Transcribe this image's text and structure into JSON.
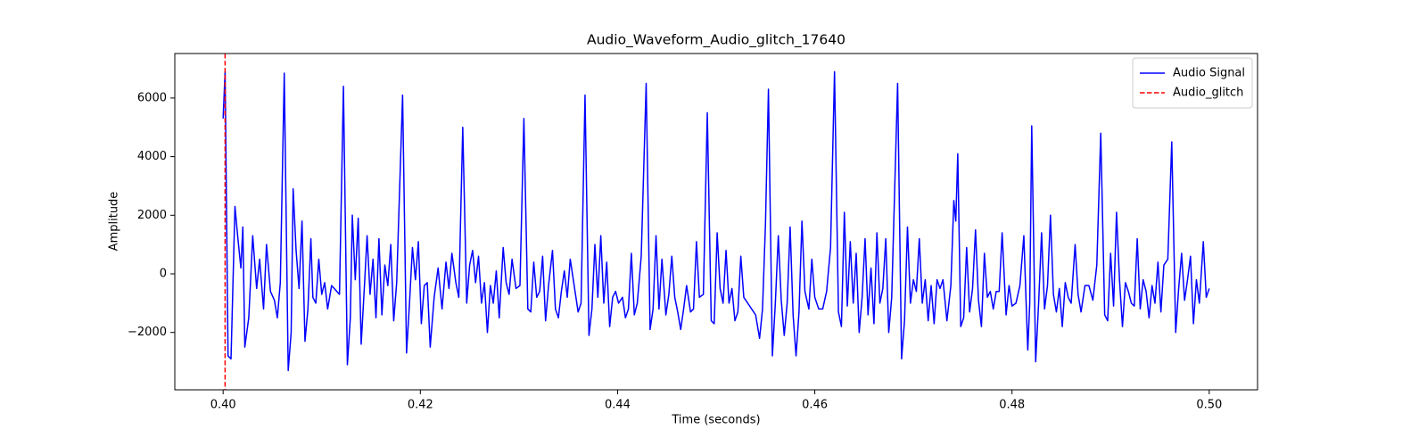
{
  "chart_data": {
    "type": "line",
    "title": "Audio_Waveform_Audio_glitch_17640",
    "xlabel": "Time (seconds)",
    "ylabel": "Amplitude",
    "x": [
      0.4,
      0.4002,
      0.4005,
      0.4008,
      0.4012,
      0.4015,
      0.4018,
      0.402,
      0.4022,
      0.4026,
      0.403,
      0.4034,
      0.4037,
      0.4041,
      0.4044,
      0.4048,
      0.4052,
      0.4055,
      0.4058,
      0.4062,
      0.4066,
      0.4069,
      0.4071,
      0.4074,
      0.4077,
      0.408,
      0.4083,
      0.4086,
      0.4089,
      0.4091,
      0.4094,
      0.4097,
      0.41,
      0.4103,
      0.4106,
      0.411,
      0.4118,
      0.4122,
      0.4126,
      0.4129,
      0.4131,
      0.4134,
      0.4137,
      0.414,
      0.4143,
      0.4146,
      0.4149,
      0.4152,
      0.4155,
      0.4158,
      0.4161,
      0.4164,
      0.4167,
      0.417,
      0.4173,
      0.4176,
      0.4182,
      0.4186,
      0.4189,
      0.4192,
      0.4195,
      0.4198,
      0.4201,
      0.4204,
      0.4207,
      0.421,
      0.4214,
      0.4218,
      0.4222,
      0.4226,
      0.4229,
      0.4232,
      0.4236,
      0.4239,
      0.4243,
      0.4247,
      0.425,
      0.4253,
      0.4256,
      0.4259,
      0.4262,
      0.4265,
      0.4268,
      0.4271,
      0.4274,
      0.4277,
      0.428,
      0.4284,
      0.4287,
      0.429,
      0.4293,
      0.4297,
      0.4301,
      0.4305,
      0.4309,
      0.4312,
      0.4315,
      0.4318,
      0.4321,
      0.4324,
      0.4327,
      0.433,
      0.4334,
      0.4337,
      0.434,
      0.4343,
      0.4346,
      0.4349,
      0.4352,
      0.4356,
      0.436,
      0.4363,
      0.4367,
      0.4371,
      0.4374,
      0.4377,
      0.438,
      0.4383,
      0.4386,
      0.4389,
      0.4392,
      0.4395,
      0.4398,
      0.4401,
      0.4405,
      0.4408,
      0.4411,
      0.4414,
      0.4417,
      0.442,
      0.4424,
      0.4429,
      0.4433,
      0.4436,
      0.4439,
      0.4442,
      0.4445,
      0.4449,
      0.4452,
      0.4455,
      0.4458,
      0.4461,
      0.4464,
      0.4467,
      0.447,
      0.4474,
      0.4477,
      0.448,
      0.4483,
      0.4487,
      0.4491,
      0.4495,
      0.4498,
      0.4501,
      0.4504,
      0.4507,
      0.451,
      0.4513,
      0.4516,
      0.4519,
      0.4522,
      0.4525,
      0.4528,
      0.4532,
      0.4536,
      0.454,
      0.4544,
      0.4547,
      0.455,
      0.4553,
      0.4557,
      0.456,
      0.4563,
      0.4566,
      0.4569,
      0.4572,
      0.4575,
      0.4578,
      0.4581,
      0.4584,
      0.4587,
      0.459,
      0.4594,
      0.4597,
      0.46,
      0.4604,
      0.4608,
      0.4612,
      0.4616,
      0.462,
      0.4624,
      0.4627,
      0.463,
      0.4633,
      0.4636,
      0.4639,
      0.4642,
      0.4645,
      0.4648,
      0.4651,
      0.4654,
      0.4657,
      0.466,
      0.4663,
      0.4666,
      0.4669,
      0.4672,
      0.4675,
      0.4678,
      0.4684,
      0.4688,
      0.4691,
      0.4694,
      0.4697,
      0.47,
      0.4703,
      0.4706,
      0.4709,
      0.4712,
      0.4715,
      0.4718,
      0.4721,
      0.4724,
      0.4727,
      0.473,
      0.4734,
      0.4738,
      0.4741,
      0.4743,
      0.4745,
      0.4748,
      0.4751,
      0.4754,
      0.4757,
      0.476,
      0.4763,
      0.4766,
      0.4769,
      0.4772,
      0.4775,
      0.4778,
      0.4781,
      0.4784,
      0.4787,
      0.479,
      0.4794,
      0.4797,
      0.48,
      0.4804,
      0.4808,
      0.4812,
      0.4816,
      0.4818,
      0.482,
      0.4824,
      0.4827,
      0.483,
      0.4833,
      0.4836,
      0.4839,
      0.4842,
      0.4845,
      0.4848,
      0.4851,
      0.4854,
      0.4857,
      0.486,
      0.4864,
      0.4867,
      0.487,
      0.4874,
      0.4878,
      0.4882,
      0.4886,
      0.489,
      0.4894,
      0.4897,
      0.49,
      0.4903,
      0.4906,
      0.4909,
      0.4912,
      0.4915,
      0.4918,
      0.4921,
      0.4924,
      0.4927,
      0.493,
      0.4933,
      0.4936,
      0.4939,
      0.4942,
      0.4945,
      0.4948,
      0.4951,
      0.4954,
      0.4958,
      0.4962,
      0.4966,
      0.4969,
      0.4972,
      0.4975,
      0.4978,
      0.4981,
      0.4984,
      0.4987,
      0.499,
      0.4994,
      0.4997,
      0.5
    ],
    "series": [
      {
        "name": "Audio Signal",
        "color": "#0000ff",
        "values": [
          5300,
          6900,
          -2800,
          -2900,
          2300,
          1200,
          200,
          1600,
          -2500,
          -1500,
          1300,
          -500,
          500,
          -1200,
          1000,
          -600,
          -900,
          -1500,
          -300,
          6850,
          -3300,
          -2000,
          2900,
          800,
          -500,
          1800,
          -2300,
          -1200,
          1200,
          -800,
          -1000,
          500,
          -700,
          -300,
          -1200,
          -400,
          -700,
          6400,
          -3100,
          -1500,
          2000,
          -200,
          1900,
          -2400,
          -600,
          1300,
          -700,
          500,
          -1500,
          1200,
          -1400,
          300,
          -400,
          1000,
          -1600,
          -300,
          6100,
          -2700,
          -1000,
          900,
          -200,
          1100,
          -1700,
          -400,
          -300,
          -2500,
          -800,
          200,
          -1200,
          400,
          -500,
          700,
          -300,
          -800,
          5000,
          -1000,
          300,
          800,
          -300,
          600,
          -1000,
          -300,
          -2000,
          -400,
          -1000,
          100,
          -1500,
          900,
          -300,
          -700,
          500,
          -500,
          -400,
          5300,
          -1200,
          -1300,
          400,
          -800,
          -600,
          600,
          -1600,
          -400,
          800,
          -1200,
          -1500,
          -600,
          100,
          -800,
          500,
          -400,
          -1300,
          -1000,
          6100,
          -2100,
          -1200,
          1000,
          -800,
          1300,
          -1000,
          400,
          -1800,
          -800,
          -600,
          -1000,
          -800,
          -1500,
          -1200,
          700,
          -1400,
          -1000,
          600,
          6500,
          -1900,
          -1200,
          1300,
          -1200,
          500,
          -1400,
          -700,
          600,
          -800,
          -1300,
          -1900,
          -1200,
          -400,
          -1300,
          -1200,
          1100,
          -800,
          -700,
          5500,
          -1600,
          -1700,
          1400,
          -500,
          -1000,
          800,
          -1000,
          -500,
          -1600,
          -1300,
          600,
          -800,
          -1000,
          -1200,
          -1400,
          -2200,
          -1200,
          1700,
          6300,
          -2800,
          -1000,
          1300,
          -900,
          -2100,
          -1000,
          1600,
          -1400,
          -2800,
          -1300,
          1800,
          -600,
          -1200,
          500,
          -800,
          -1200,
          -1200,
          -600,
          900,
          6900,
          -1300,
          -1800,
          2100,
          -1100,
          1100,
          -1000,
          700,
          -2000,
          -800,
          1200,
          -1400,
          200,
          -1700,
          1400,
          -1000,
          -500,
          1200,
          -2000,
          -800,
          6500,
          -2900,
          -1600,
          1600,
          -1000,
          -200,
          -600,
          1200,
          -1000,
          -200,
          -1600,
          -400,
          -1700,
          -200,
          -500,
          -200,
          -1600,
          -400,
          2500,
          1800,
          4100,
          -1800,
          -1500,
          900,
          -1300,
          -500,
          1500,
          -900,
          -1800,
          700,
          -800,
          -600,
          -1200,
          -600,
          -600,
          1400,
          -1400,
          -400,
          -1100,
          -1000,
          -400,
          1300,
          -2600,
          -1000,
          5050,
          -3000,
          -1000,
          1400,
          -1200,
          -400,
          2000,
          -700,
          -1300,
          -500,
          -1800,
          -300,
          -800,
          -1000,
          1000,
          -700,
          -1300,
          -400,
          -400,
          -900,
          300,
          4800,
          -1400,
          -1600,
          700,
          -1100,
          2100,
          -200,
          -1800,
          -300,
          -600,
          -1000,
          -1100,
          1200,
          -1200,
          -200,
          -600,
          -1500,
          -400,
          -1000,
          400,
          -1300,
          300,
          500,
          4500,
          -2000,
          -500,
          700,
          -900,
          -200,
          600,
          -1700,
          -200,
          -1000,
          1100,
          -800,
          -500
        ]
      }
    ],
    "vlines": [
      {
        "name": "Audio_glitch",
        "x": 0.4002,
        "color": "#ff0000"
      }
    ],
    "xlim": [
      0.3951,
      0.5049
    ],
    "ylim": [
      -3957,
      7519
    ],
    "xticks": [
      {
        "value": 0.4,
        "label": "0.40"
      },
      {
        "value": 0.42,
        "label": "0.42"
      },
      {
        "value": 0.44,
        "label": "0.44"
      },
      {
        "value": 0.46,
        "label": "0.46"
      },
      {
        "value": 0.48,
        "label": "0.48"
      },
      {
        "value": 0.5,
        "label": "0.50"
      }
    ],
    "yticks": [
      {
        "value": -2000,
        "label": "−2000"
      },
      0,
      2000,
      4000,
      6000
    ],
    "legend": "upper right",
    "grid": false
  }
}
